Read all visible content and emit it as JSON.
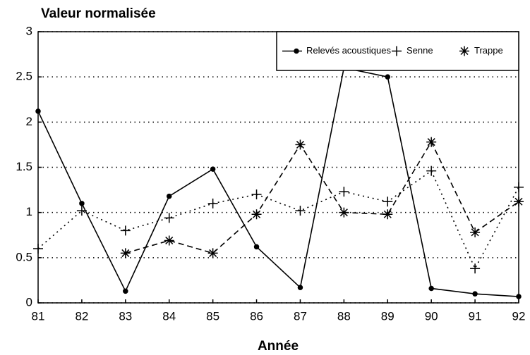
{
  "chart_data": {
    "type": "line",
    "title": "Valeur normalisée",
    "xlabel": "Année",
    "x": [
      81,
      82,
      83,
      84,
      85,
      86,
      87,
      88,
      89,
      90,
      91,
      92
    ],
    "xlim": [
      81,
      92
    ],
    "xticks": [
      81,
      82,
      83,
      84,
      85,
      86,
      87,
      88,
      89,
      90,
      91,
      92
    ],
    "ylim": [
      0,
      3
    ],
    "yticks": [
      0,
      0.5,
      1,
      1.5,
      2,
      2.5,
      3
    ],
    "grid": true,
    "legend": "upper right",
    "series": [
      {
        "name": "Relevés acoustiques",
        "color": "#000000",
        "line": "solid",
        "marker": "dot",
        "values": [
          2.12,
          1.1,
          0.13,
          1.18,
          1.48,
          0.62,
          0.17,
          2.6,
          2.5,
          0.16,
          0.1,
          0.07
        ]
      },
      {
        "name": "Senne",
        "color": "#000000",
        "line": "dotted",
        "marker": "plus",
        "values": [
          0.6,
          1.02,
          0.8,
          0.94,
          1.1,
          1.2,
          1.02,
          1.23,
          1.12,
          1.46,
          0.38,
          1.28
        ]
      },
      {
        "name": "Trappe",
        "color": "#000000",
        "line": "dashed",
        "marker": "star",
        "values": [
          null,
          null,
          0.55,
          0.69,
          0.55,
          0.98,
          1.75,
          1.0,
          0.98,
          1.78,
          0.78,
          1.12
        ]
      }
    ]
  }
}
